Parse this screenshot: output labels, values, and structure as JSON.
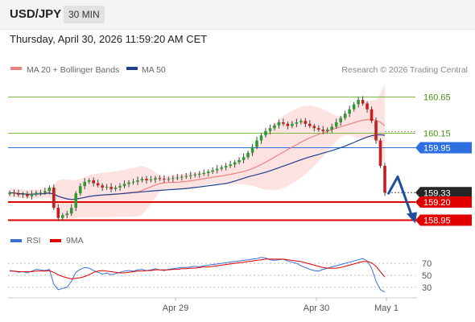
{
  "header": {
    "symbol": "USD/JPY",
    "timeframe": "30 MIN",
    "datetime": "Thursday, April 30, 2026 11:59:20 AM CET"
  },
  "legend": {
    "ma20": "MA 20 + Bollinger Bands",
    "ma50": "MA 50",
    "credit": "Research © 2026 Trading Central"
  },
  "colors": {
    "ma20": "#f08080",
    "ma50": "#1f3f8f",
    "bollinger_fill": "#fde2e2",
    "up_candle": "#2f9a2f",
    "down_candle": "#c21f1f",
    "resistance": "#7cbb3a",
    "pivot": "#2d6ee0",
    "support": "#e00000",
    "rsi": "#3a6fd8",
    "rsi_ma": "#e00000"
  },
  "chart_data": [
    {
      "type": "candlestick",
      "x_ticks": [
        "Apr 29",
        "Apr 30",
        "May 1"
      ],
      "ylim": [
        158.9,
        160.9
      ],
      "levels": [
        {
          "label": "160.65",
          "value": 160.65,
          "kind": "resistance"
        },
        {
          "label": "160.15",
          "value": 160.15,
          "kind": "resistance"
        },
        {
          "label": "159.95",
          "value": 159.95,
          "kind": "pivot"
        },
        {
          "label": "159.33",
          "value": 159.33,
          "kind": "last"
        },
        {
          "label": "159.20",
          "value": 159.2,
          "kind": "support"
        },
        {
          "label": "158.95",
          "value": 158.95,
          "kind": "support"
        }
      ],
      "series": [
        {
          "name": "MA 20 + Bollinger Bands",
          "kind": "ma20_bands"
        },
        {
          "name": "MA 50",
          "kind": "ma50"
        }
      ],
      "closes": [
        159.33,
        159.32,
        159.3,
        159.31,
        159.28,
        159.31,
        159.33,
        159.33,
        159.35,
        159.4,
        159.12,
        158.98,
        159.02,
        159.04,
        159.12,
        159.32,
        159.42,
        159.48,
        159.5,
        159.46,
        159.43,
        159.4,
        159.41,
        159.38,
        159.4,
        159.42,
        159.45,
        159.47,
        159.48,
        159.5,
        159.52,
        159.5,
        159.51,
        159.53,
        159.52,
        159.51,
        159.52,
        159.53,
        159.54,
        159.55,
        159.56,
        159.57,
        159.58,
        159.59,
        159.6,
        159.62,
        159.64,
        159.66,
        159.68,
        159.7,
        159.72,
        159.75,
        159.78,
        159.82,
        159.88,
        159.96,
        160.05,
        160.12,
        160.18,
        160.22,
        160.26,
        160.3,
        160.28,
        160.25,
        160.28,
        160.3,
        160.32,
        160.28,
        160.25,
        160.22,
        160.2,
        160.18,
        160.2,
        160.24,
        160.3,
        160.36,
        160.42,
        160.48,
        160.55,
        160.61,
        160.56,
        160.48,
        160.32,
        160.05,
        159.7,
        159.33
      ],
      "arrow": {
        "from": 159.33,
        "to": 158.95,
        "peak": 159.55
      }
    },
    {
      "type": "line",
      "name": "RSI",
      "series": [
        {
          "name": "RSI",
          "values": [
            58,
            57,
            55,
            56,
            54,
            57,
            60,
            59,
            58,
            60,
            35,
            26,
            28,
            30,
            40,
            55,
            60,
            63,
            62,
            58,
            55,
            52,
            54,
            51,
            53,
            55,
            57,
            58,
            57,
            59,
            60,
            58,
            59,
            61,
            59,
            58,
            60,
            61,
            62,
            63,
            63,
            64,
            65,
            64,
            66,
            67,
            68,
            69,
            70,
            71,
            72,
            73,
            74,
            75,
            76,
            77,
            78,
            80,
            79,
            76,
            75,
            76,
            77,
            74,
            72,
            70,
            66,
            63,
            60,
            58,
            57,
            60,
            62,
            64,
            66,
            68,
            70,
            72,
            74,
            76,
            78,
            74,
            62,
            40,
            26,
            22
          ]
        },
        {
          "name": "9MA",
          "values": [
            57,
            57,
            56,
            56,
            56,
            56,
            57,
            57,
            57,
            58,
            55,
            51,
            48,
            46,
            44,
            45,
            46,
            48,
            51,
            55,
            57,
            58,
            57,
            56,
            55,
            54,
            54,
            55,
            56,
            57,
            57,
            58,
            58,
            59,
            59,
            59,
            59,
            60,
            60,
            61,
            61,
            62,
            62,
            63,
            64,
            64,
            65,
            66,
            67,
            68,
            69,
            70,
            71,
            72,
            73,
            74,
            75,
            76,
            77,
            77,
            77,
            77,
            77,
            76,
            75,
            74,
            73,
            71,
            69,
            67,
            65,
            63,
            62,
            62,
            62,
            63,
            65,
            67,
            69,
            71,
            73,
            73,
            71,
            65,
            56,
            47
          ]
        }
      ],
      "y_ticks": [
        "70",
        "50",
        "30"
      ],
      "ylim": [
        15,
        85
      ]
    }
  ]
}
